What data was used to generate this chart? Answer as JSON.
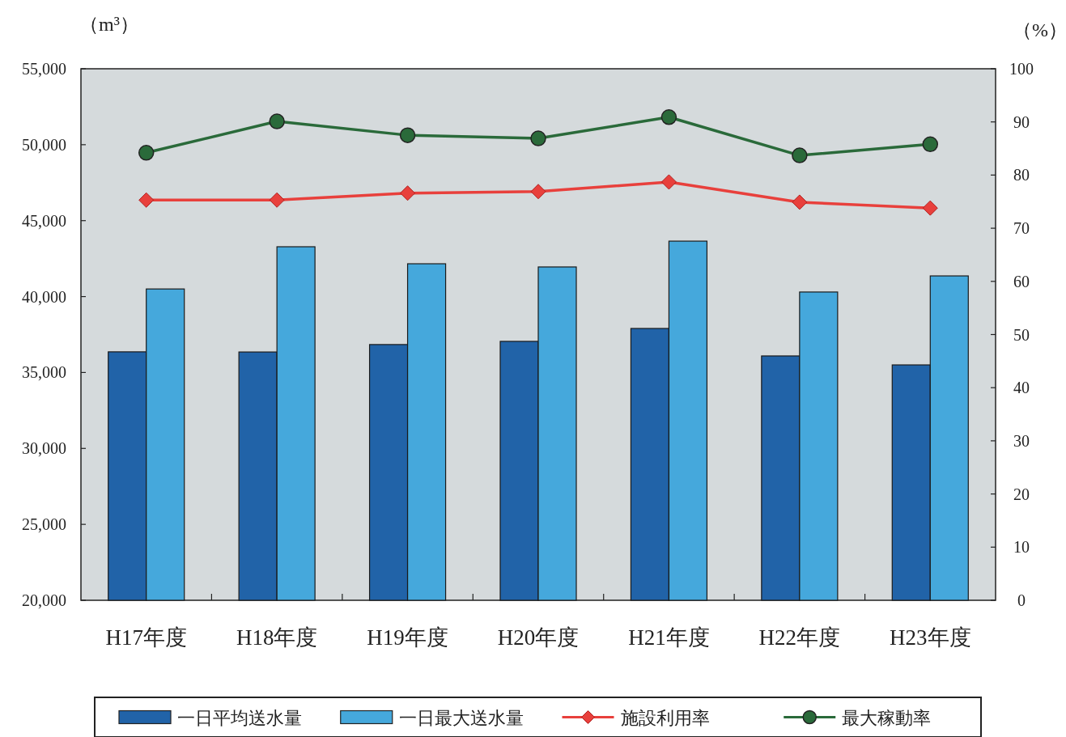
{
  "chart_data": {
    "type": "bar",
    "ylabel": "（m³）",
    "y2label": "（%）",
    "categories": [
      "H17年度",
      "H18年度",
      "H19年度",
      "H20年度",
      "H21年度",
      "H22年度",
      "H23年度"
    ],
    "series": [
      {
        "name": "一日平均送水量",
        "color": "#2163a8",
        "values": [
          36360,
          36350,
          36840,
          37050,
          37900,
          36090,
          35500
        ]
      },
      {
        "name": "一日最大送水量",
        "color": "#45a8dc",
        "values": [
          40500,
          43280,
          42160,
          41950,
          43650,
          40300,
          41360
        ]
      },
      {
        "name": "施設利用率",
        "type": "line",
        "axis": "y2",
        "marker": "diamond",
        "color": "#e8403c",
        "values": [
          75.3,
          75.3,
          76.6,
          76.9,
          78.7,
          74.9,
          73.8
        ]
      },
      {
        "name": "最大稼動率",
        "type": "line",
        "axis": "y2",
        "marker": "circle",
        "color": "#2a6a3a",
        "values": [
          84.2,
          90.1,
          87.5,
          86.9,
          90.9,
          83.7,
          85.8
        ]
      }
    ],
    "ylim": [
      20000,
      55000
    ],
    "yticks": [
      {
        "value": 20000,
        "label": "20,000"
      },
      {
        "value": 25000,
        "label": "25,000"
      },
      {
        "value": 30000,
        "label": "30,000"
      },
      {
        "value": 35000,
        "label": "35,000"
      },
      {
        "value": 40000,
        "label": "40,000"
      },
      {
        "value": 45000,
        "label": "45,000"
      },
      {
        "value": 50000,
        "label": "50,000"
      },
      {
        "value": 55000,
        "label": "55,000"
      }
    ],
    "y2lim": [
      0,
      100
    ],
    "y2ticks": [
      0,
      10,
      20,
      30,
      40,
      50,
      60,
      70,
      80,
      90,
      100
    ],
    "legend": "bottom"
  }
}
